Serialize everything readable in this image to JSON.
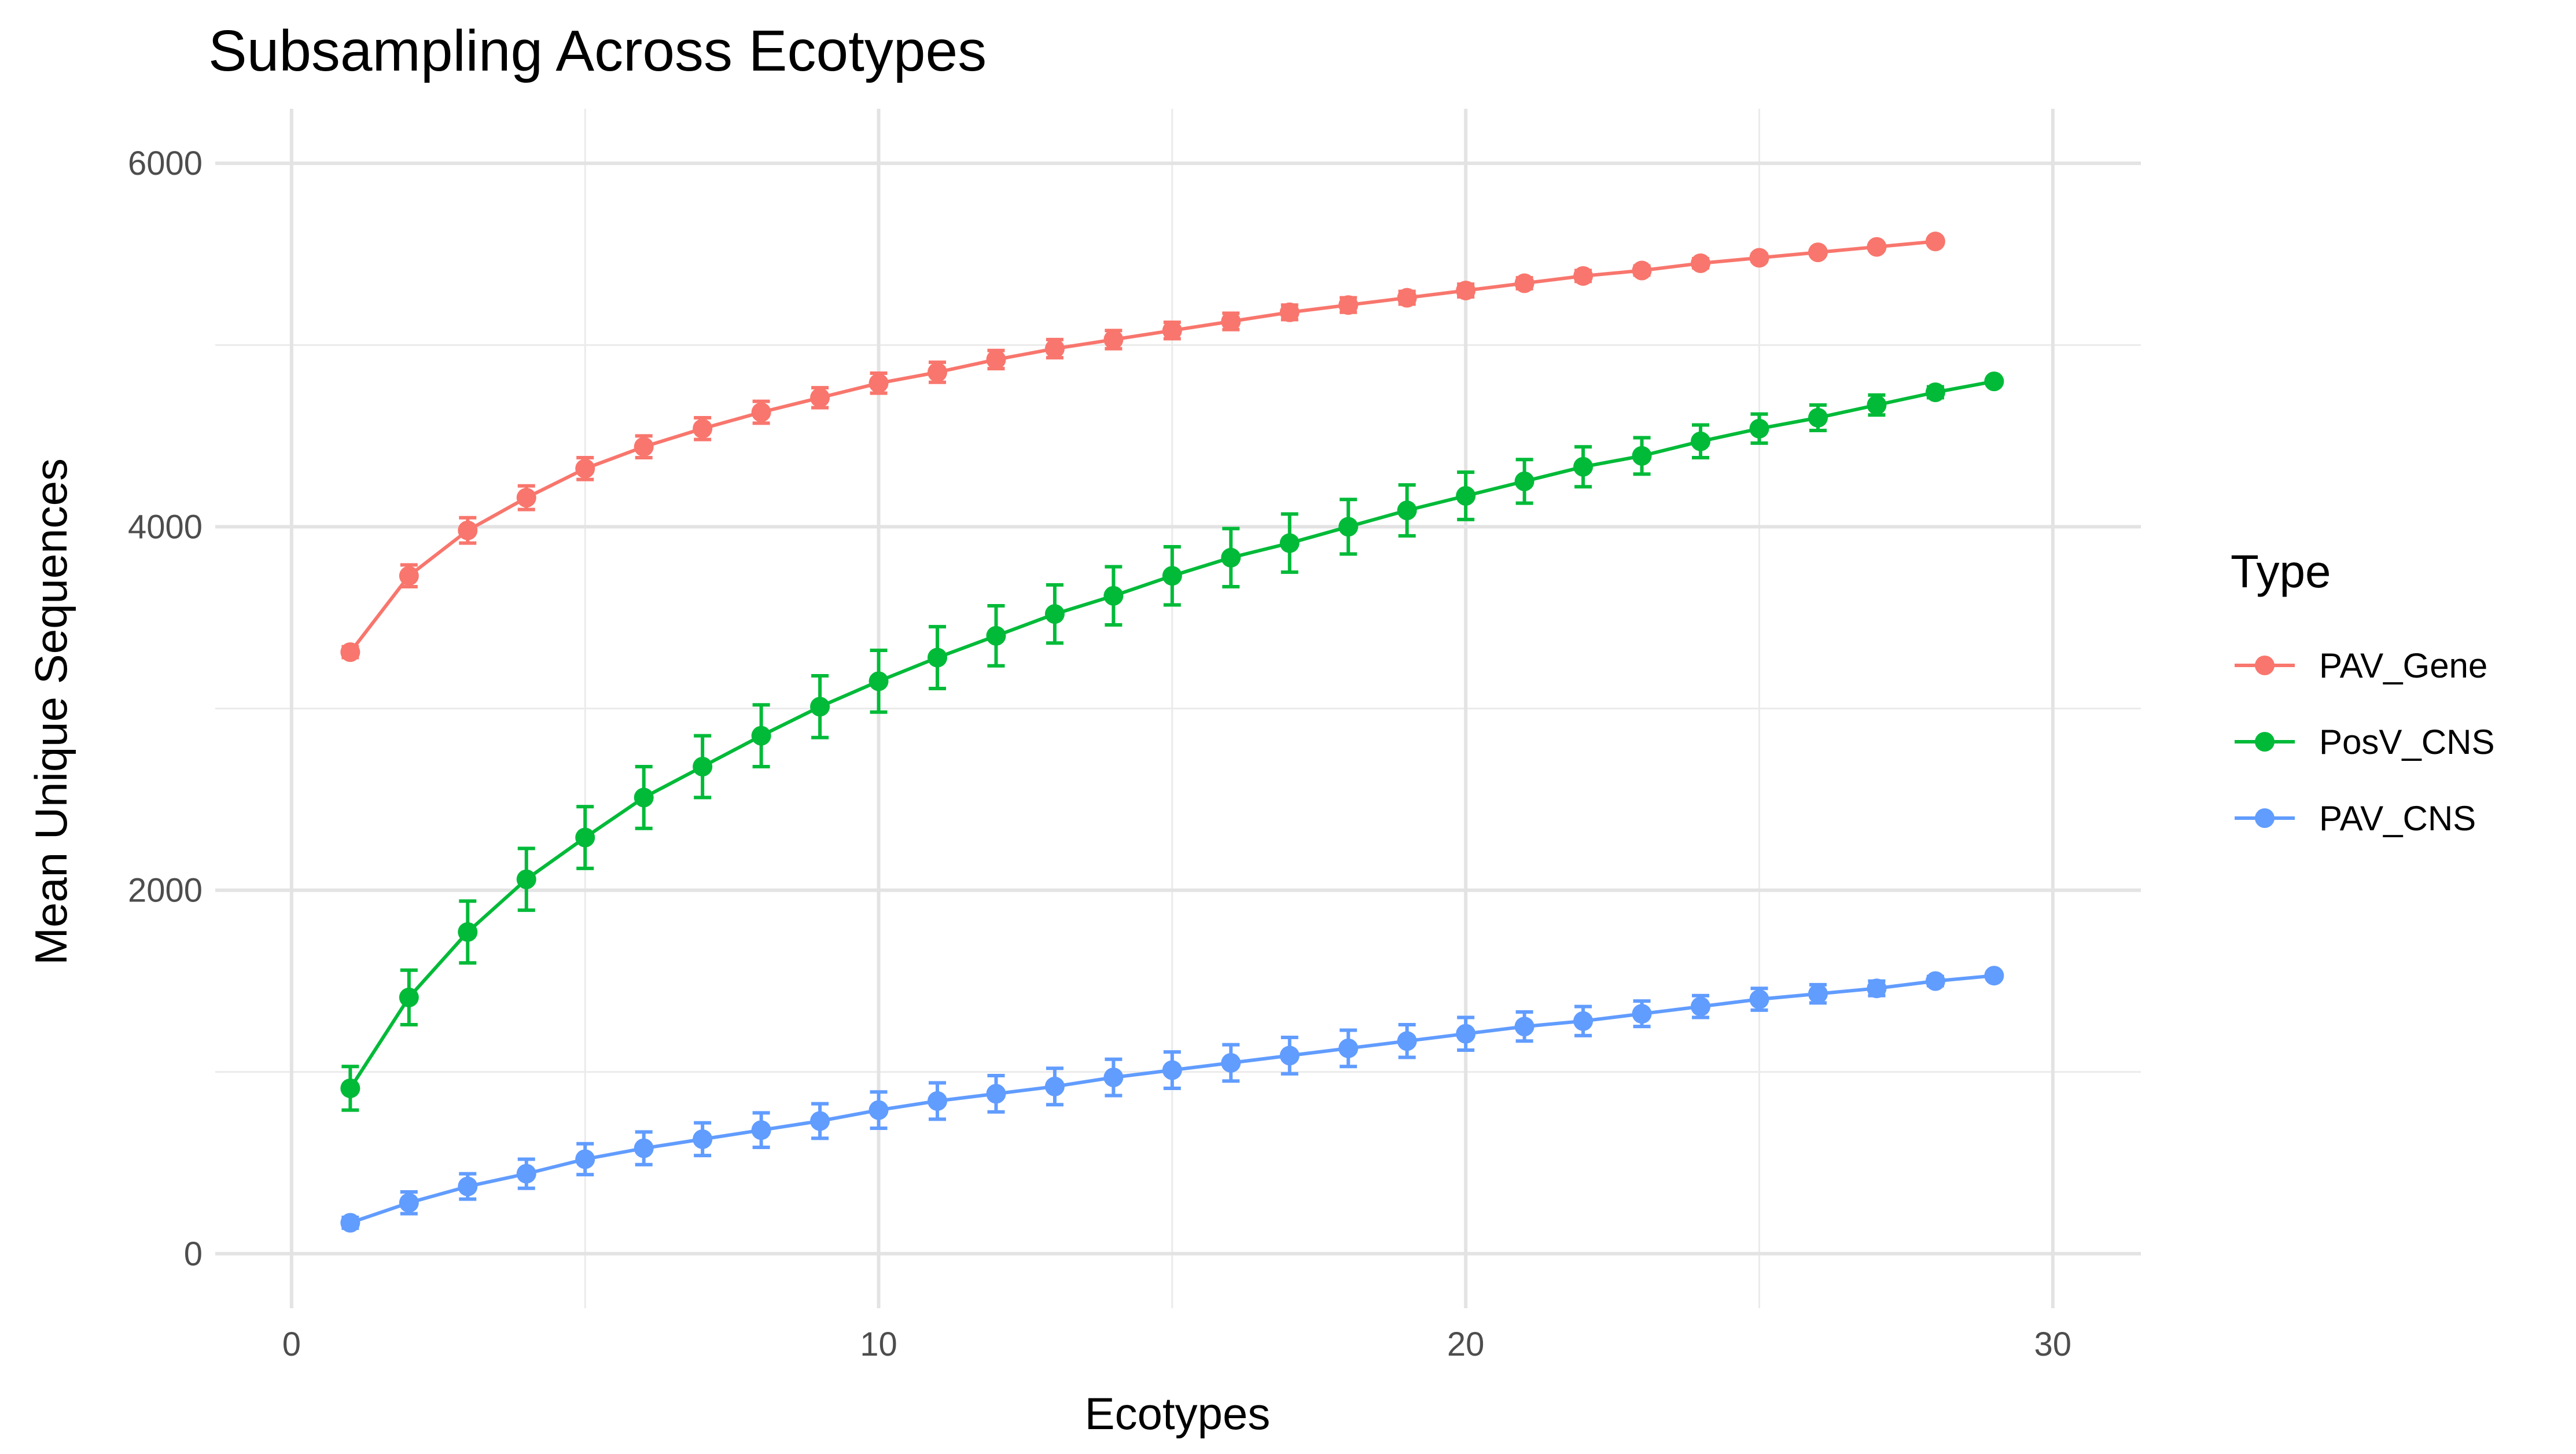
{
  "chart_data": {
    "type": "line",
    "title": "Subsampling Across Ecotypes",
    "xlabel": "Ecotypes",
    "ylabel": "Mean Unique Sequences",
    "xlim": [
      -1.3,
      31.5
    ],
    "ylim": [
      -300,
      6300
    ],
    "x_ticks": [
      0,
      10,
      20,
      30
    ],
    "y_ticks": [
      0,
      2000,
      4000,
      6000
    ],
    "x_tick_labels": [
      "0",
      "10",
      "20",
      "30"
    ],
    "y_tick_labels": [
      "0",
      "2000",
      "4000",
      "6000"
    ],
    "grid": true,
    "legend_title": "Type",
    "legend_position": "right",
    "error_bars": true,
    "series": [
      {
        "name": "PAV_Gene",
        "color": "#F8766D",
        "x": [
          1,
          2,
          3,
          4,
          5,
          6,
          7,
          8,
          9,
          10,
          11,
          12,
          13,
          14,
          15,
          16,
          17,
          18,
          19,
          20,
          21,
          22,
          23,
          24,
          25,
          26,
          27,
          28
        ],
        "y": [
          3310,
          3730,
          3980,
          4160,
          4320,
          4440,
          4540,
          4630,
          4710,
          4790,
          4850,
          4920,
          4980,
          5030,
          5080,
          5130,
          5180,
          5220,
          5260,
          5300,
          5340,
          5380,
          5410,
          5450,
          5480,
          5510,
          5540,
          5570
        ],
        "err": [
          30,
          60,
          70,
          65,
          60,
          60,
          60,
          60,
          55,
          55,
          55,
          50,
          50,
          50,
          45,
          45,
          40,
          40,
          35,
          35,
          30,
          30,
          25,
          25,
          20,
          15,
          15,
          10
        ]
      },
      {
        "name": "PosV_CNS",
        "color": "#00BA38",
        "x": [
          1,
          2,
          3,
          4,
          5,
          6,
          7,
          8,
          9,
          10,
          11,
          12,
          13,
          14,
          15,
          16,
          17,
          18,
          19,
          20,
          21,
          22,
          23,
          24,
          25,
          26,
          27,
          28,
          29
        ],
        "y": [
          910,
          1410,
          1770,
          2060,
          2290,
          2510,
          2680,
          2850,
          3010,
          3150,
          3280,
          3400,
          3520,
          3620,
          3730,
          3830,
          3910,
          4000,
          4090,
          4170,
          4250,
          4330,
          4390,
          4470,
          4540,
          4600,
          4670,
          4740,
          4800
        ],
        "err": [
          120,
          150,
          170,
          170,
          170,
          170,
          170,
          170,
          170,
          170,
          170,
          165,
          160,
          160,
          160,
          160,
          160,
          150,
          140,
          130,
          120,
          110,
          100,
          90,
          80,
          70,
          55,
          30,
          10
        ]
      },
      {
        "name": "PAV_CNS",
        "color": "#619CFF",
        "x": [
          1,
          2,
          3,
          4,
          5,
          6,
          7,
          8,
          9,
          10,
          11,
          12,
          13,
          14,
          15,
          16,
          17,
          18,
          19,
          20,
          21,
          22,
          23,
          24,
          25,
          26,
          27,
          28,
          29
        ],
        "y": [
          170,
          280,
          370,
          440,
          520,
          580,
          630,
          680,
          730,
          790,
          840,
          880,
          920,
          970,
          1010,
          1050,
          1090,
          1130,
          1170,
          1210,
          1250,
          1280,
          1320,
          1360,
          1400,
          1430,
          1460,
          1500,
          1530
        ],
        "err": [
          30,
          60,
          70,
          80,
          85,
          90,
          90,
          95,
          95,
          100,
          100,
          100,
          100,
          100,
          100,
          100,
          100,
          100,
          90,
          90,
          80,
          80,
          70,
          60,
          60,
          50,
          40,
          25,
          10
        ]
      }
    ]
  }
}
